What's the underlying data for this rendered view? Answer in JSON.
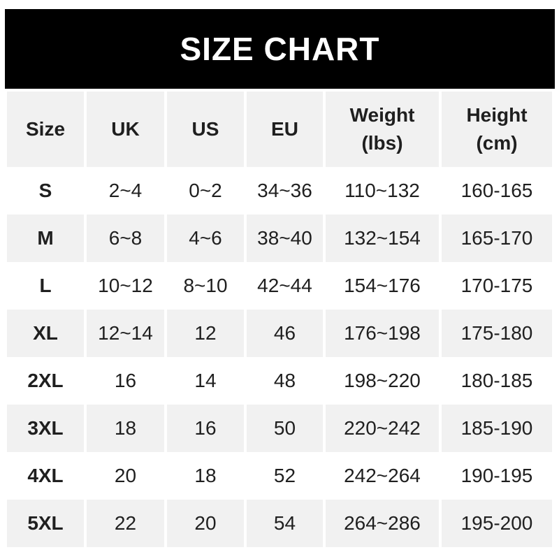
{
  "banner": {
    "bg": "#000000",
    "text_color": "#ffffff"
  },
  "colors": {
    "page_bg": "#ffffff",
    "alt_row_bg": "#f1f1f1",
    "text": "#1f1f1f",
    "banner_bg": "#000000",
    "banner_text": "#ffffff"
  },
  "chart_data": {
    "type": "table",
    "title": "SIZE CHART",
    "columns": [
      {
        "label": "Size",
        "sub": ""
      },
      {
        "label": "UK",
        "sub": ""
      },
      {
        "label": "US",
        "sub": ""
      },
      {
        "label": "EU",
        "sub": ""
      },
      {
        "label": "Weight",
        "sub": "(lbs)"
      },
      {
        "label": "Height",
        "sub": "(cm)"
      }
    ],
    "rows": [
      {
        "size": "S",
        "uk": "2~4",
        "us": "0~2",
        "eu": "34~36",
        "weight_lbs": "110~132",
        "height_cm": "160-165"
      },
      {
        "size": "M",
        "uk": "6~8",
        "us": "4~6",
        "eu": "38~40",
        "weight_lbs": "132~154",
        "height_cm": "165-170"
      },
      {
        "size": "L",
        "uk": "10~12",
        "us": "8~10",
        "eu": "42~44",
        "weight_lbs": "154~176",
        "height_cm": "170-175"
      },
      {
        "size": "XL",
        "uk": "12~14",
        "us": "12",
        "eu": "46",
        "weight_lbs": "176~198",
        "height_cm": "175-180"
      },
      {
        "size": "2XL",
        "uk": "16",
        "us": "14",
        "eu": "48",
        "weight_lbs": "198~220",
        "height_cm": "180-185"
      },
      {
        "size": "3XL",
        "uk": "18",
        "us": "16",
        "eu": "50",
        "weight_lbs": "220~242",
        "height_cm": "185-190"
      },
      {
        "size": "4XL",
        "uk": "20",
        "us": "18",
        "eu": "52",
        "weight_lbs": "242~264",
        "height_cm": "190-195"
      },
      {
        "size": "5XL",
        "uk": "22",
        "us": "20",
        "eu": "54",
        "weight_lbs": "264~286",
        "height_cm": "195-200"
      }
    ]
  }
}
